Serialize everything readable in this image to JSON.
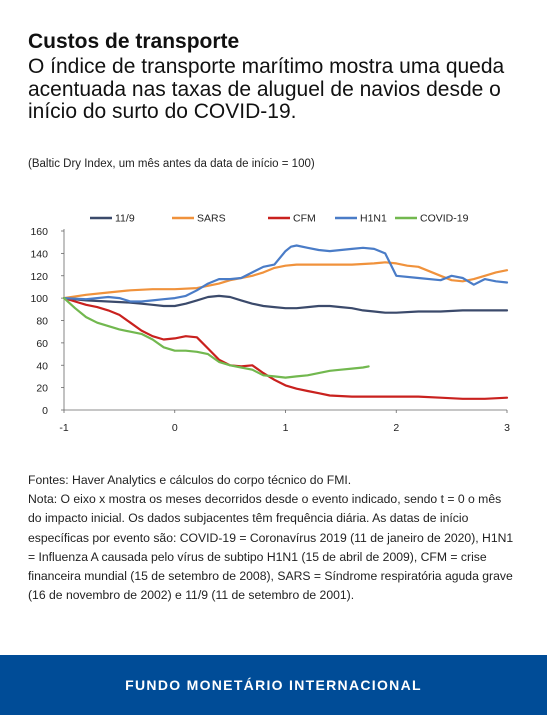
{
  "header": {
    "title": "Custos de transporte",
    "subtitle": "O índice de transporte marítimo mostra uma queda acentuada nas taxas de aluguel de navios desde o início do surto do COVID-19.",
    "unit_note": "(Baltic Dry Index, um mês antes da data de início = 100)"
  },
  "chart_data": {
    "type": "line",
    "title": "",
    "xlabel": "",
    "ylabel": "",
    "xlim": [
      -1,
      3
    ],
    "ylim": [
      0,
      160
    ],
    "x_ticks": [
      "-1",
      "0",
      "1",
      "2",
      "3"
    ],
    "y_ticks": [
      "0",
      "20",
      "40",
      "60",
      "80",
      "100",
      "120",
      "140",
      "160"
    ],
    "grid": false,
    "legend": "top",
    "series": [
      {
        "name": "11/9",
        "color": "#3b4a6b",
        "x": [
          -1,
          -0.8,
          -0.6,
          -0.4,
          -0.3,
          -0.2,
          -0.1,
          0,
          0.1,
          0.2,
          0.3,
          0.4,
          0.5,
          0.6,
          0.7,
          0.8,
          0.9,
          1.0,
          1.1,
          1.2,
          1.3,
          1.4,
          1.5,
          1.6,
          1.7,
          1.8,
          1.9,
          2.0,
          2.2,
          2.4,
          2.6,
          2.8,
          3.0
        ],
        "y": [
          100,
          98,
          97,
          96,
          95,
          94,
          93,
          93,
          95,
          98,
          101,
          102,
          101,
          98,
          95,
          93,
          92,
          91,
          91,
          92,
          93,
          93,
          92,
          91,
          89,
          88,
          87,
          87,
          88,
          88,
          89,
          89,
          89
        ]
      },
      {
        "name": "SARS",
        "color": "#f0923c",
        "x": [
          -1,
          -0.8,
          -0.6,
          -0.4,
          -0.2,
          0,
          0.2,
          0.4,
          0.5,
          0.6,
          0.7,
          0.8,
          0.9,
          1.0,
          1.1,
          1.2,
          1.4,
          1.6,
          1.8,
          1.9,
          2.0,
          2.1,
          2.2,
          2.3,
          2.4,
          2.5,
          2.6,
          2.7,
          2.8,
          2.9,
          3.0
        ],
        "y": [
          100,
          103,
          105,
          107,
          108,
          108,
          109,
          113,
          116,
          118,
          120,
          123,
          127,
          129,
          130,
          130,
          130,
          130,
          131,
          132,
          131,
          129,
          128,
          124,
          120,
          116,
          115,
          117,
          120,
          123,
          125
        ]
      },
      {
        "name": "CFM",
        "color": "#c9211e",
        "x": [
          -1,
          -0.9,
          -0.8,
          -0.7,
          -0.6,
          -0.5,
          -0.4,
          -0.3,
          -0.2,
          -0.1,
          0,
          0.1,
          0.2,
          0.3,
          0.4,
          0.5,
          0.6,
          0.7,
          0.8,
          0.9,
          1.0,
          1.1,
          1.2,
          1.3,
          1.4,
          1.6,
          1.8,
          2.0,
          2.2,
          2.4,
          2.6,
          2.8,
          3.0
        ],
        "y": [
          100,
          97,
          94,
          92,
          89,
          85,
          78,
          71,
          66,
          63,
          64,
          66,
          65,
          55,
          45,
          40,
          39,
          40,
          33,
          27,
          22,
          19,
          17,
          15,
          13,
          12,
          12,
          12,
          12,
          11,
          10,
          10,
          11
        ]
      },
      {
        "name": "H1N1",
        "color": "#4a7cc7",
        "x": [
          -1,
          -0.8,
          -0.6,
          -0.5,
          -0.4,
          -0.3,
          -0.2,
          -0.1,
          0,
          0.1,
          0.2,
          0.3,
          0.4,
          0.5,
          0.6,
          0.7,
          0.8,
          0.9,
          1.0,
          1.05,
          1.1,
          1.2,
          1.3,
          1.4,
          1.5,
          1.6,
          1.7,
          1.8,
          1.9,
          2.0,
          2.2,
          2.4,
          2.5,
          2.6,
          2.7,
          2.8,
          2.9,
          3.0
        ],
        "y": [
          100,
          99,
          101,
          100,
          97,
          97,
          98,
          99,
          100,
          102,
          107,
          113,
          117,
          117,
          118,
          123,
          128,
          130,
          142,
          146,
          147,
          145,
          143,
          142,
          143,
          144,
          145,
          144,
          140,
          120,
          118,
          116,
          120,
          118,
          112,
          117,
          115,
          114
        ]
      },
      {
        "name": "COVID-19",
        "color": "#72b84f",
        "x": [
          -1,
          -0.9,
          -0.8,
          -0.7,
          -0.6,
          -0.5,
          -0.4,
          -0.3,
          -0.2,
          -0.1,
          0,
          0.1,
          0.2,
          0.3,
          0.4,
          0.5,
          0.6,
          0.7,
          0.8,
          0.9,
          1.0,
          1.1,
          1.2,
          1.3,
          1.4,
          1.5,
          1.6,
          1.7,
          1.75
        ],
        "y": [
          100,
          91,
          83,
          78,
          75,
          72,
          70,
          68,
          63,
          56,
          53,
          53,
          52,
          50,
          43,
          40,
          38,
          36,
          31,
          30,
          29,
          30,
          31,
          33,
          35,
          36,
          37,
          38,
          39
        ]
      }
    ]
  },
  "notes": {
    "source": "Fontes: Haver Analytics e cálculos do corpo técnico do FMI.",
    "note": "Nota: O eixo x mostra os meses decorridos desde o evento indicado, sendo t = 0 o mês do impacto inicial. Os dados subjacentes têm frequência diária. As datas de início específicas por evento são: COVID-19 = Coronavírus 2019 (11 de janeiro de 2020), H1N1 = Influenza A causada pelo vírus de subtipo H1N1 (15 de abril de 2009), CFM = crise financeira mundial (15 de setembro de 2008), SARS = Síndrome respiratória aguda grave (16 de novembro de 2002) e 11/9 (11 de setembro de 2001)."
  },
  "footer": {
    "organization": "FUNDO MONETÁRIO INTERNACIONAL"
  }
}
